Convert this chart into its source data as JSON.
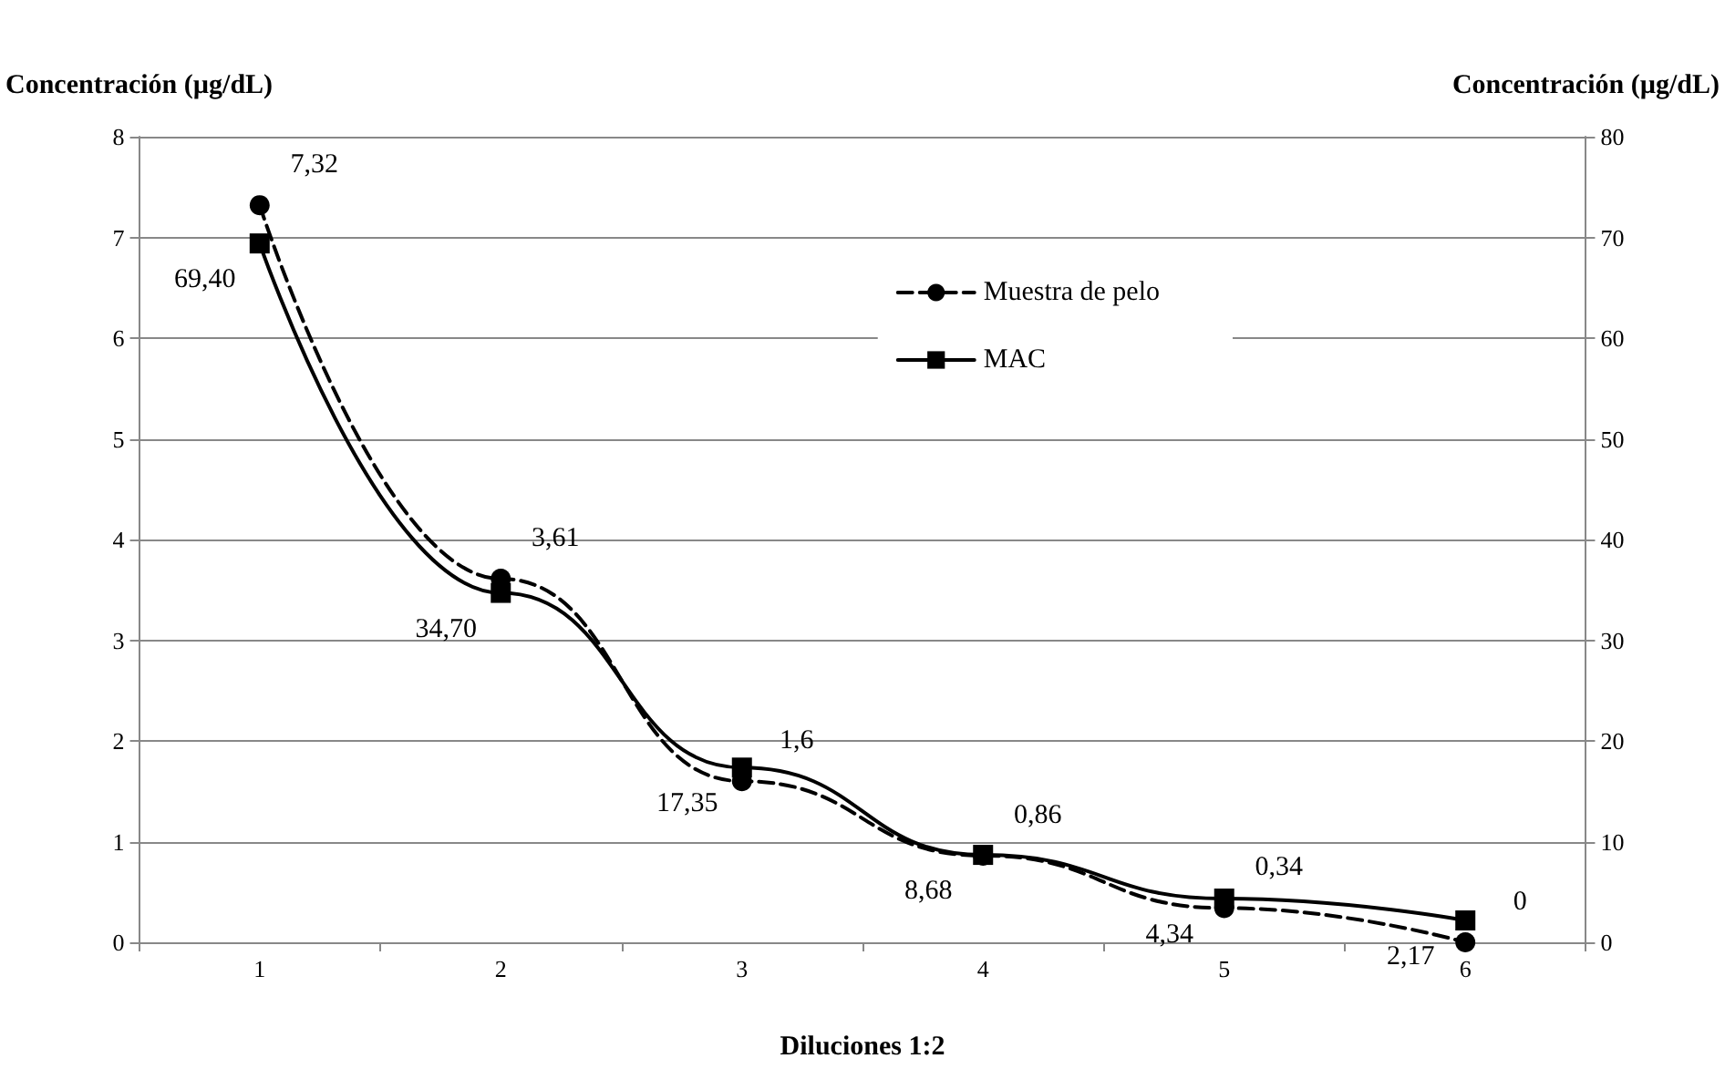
{
  "chart_data": {
    "type": "line",
    "xlabel": "Diluciones 1:2",
    "ylabel": "Concentración (µg/dL)",
    "y2label": "Concentración (µg/dL)",
    "categories": [
      "1",
      "2",
      "3",
      "4",
      "5",
      "6"
    ],
    "series": [
      {
        "name": "Muestra de pelo",
        "color": "#000000",
        "values": [
          7.32,
          3.61,
          1.6,
          0.86,
          0.34,
          0
        ],
        "value_labels": [
          "7,32",
          "3,61",
          "1,6",
          "0,86",
          "0,34",
          "0"
        ],
        "marker": "circle",
        "line_style": "dashed"
      },
      {
        "name": "MAC",
        "color": "#000000",
        "values": [
          69.4,
          34.7,
          17.35,
          8.68,
          4.34,
          2.17
        ],
        "value_labels": [
          "69,40",
          "34,70",
          "17,35",
          "8,68",
          "4,34",
          "2,17"
        ],
        "marker": "square",
        "line_style": "solid",
        "axis": "y2"
      }
    ],
    "ylim": [
      0,
      8
    ],
    "yticks": [
      0,
      1,
      2,
      3,
      4,
      5,
      6,
      7,
      8
    ],
    "y2lim": [
      0,
      80
    ],
    "y2ticks": [
      0,
      10,
      20,
      30,
      40,
      50,
      60,
      70,
      80
    ],
    "grid": "y",
    "legend": "top right"
  }
}
